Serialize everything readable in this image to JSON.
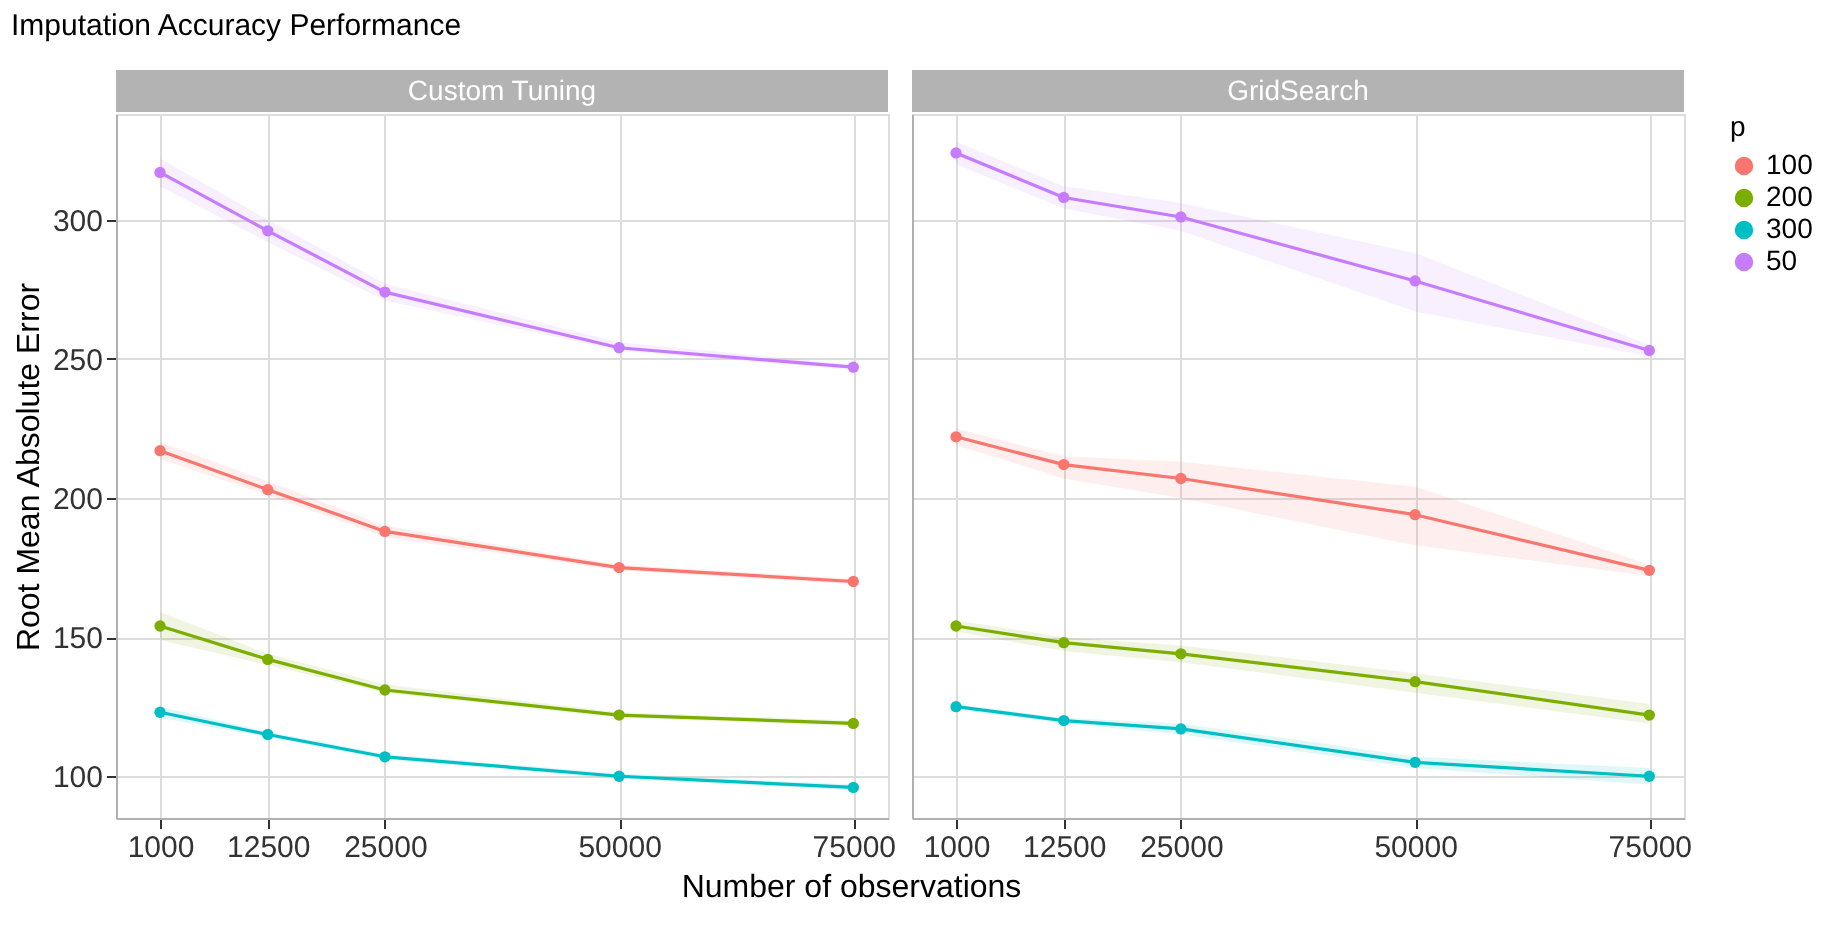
{
  "chart_data": [
    {
      "type": "line",
      "title": "Imputation Accuracy Performance",
      "subtitle": "Custom Tuning",
      "xlabel": "Number of observations",
      "ylabel": "Root Mean Absolute Error",
      "x": [
        1000,
        12500,
        25000,
        50000,
        75000
      ],
      "xlim": [
        -3700,
        78700
      ],
      "xticks": [
        1000,
        12500,
        25000,
        50000,
        75000
      ],
      "ylim": [
        85,
        338
      ],
      "yticks": [
        100,
        150,
        200,
        250,
        300
      ],
      "grid": true,
      "marker": "circle",
      "line_style": "solid",
      "legend": "right",
      "legend_title": "p",
      "series": [
        {
          "name": "100",
          "color": "#f8766d",
          "values": [
            217,
            203,
            188,
            175,
            170
          ],
          "lower": [
            214,
            201,
            186,
            174,
            169
          ],
          "upper": [
            220,
            206,
            190,
            176,
            171
          ]
        },
        {
          "name": "200",
          "color": "#7cae00",
          "values": [
            154,
            142,
            131,
            122,
            119
          ],
          "lower": [
            149,
            140,
            130,
            121,
            118
          ],
          "upper": [
            159,
            144,
            133,
            123,
            120
          ]
        },
        {
          "name": "300",
          "color": "#00bfc4",
          "values": [
            123,
            115,
            107,
            100,
            96
          ],
          "lower": [
            121,
            114,
            106,
            99,
            95
          ],
          "upper": [
            125,
            116,
            108,
            101,
            97
          ]
        },
        {
          "name": "50",
          "color": "#c77cff",
          "values": [
            317,
            296,
            274,
            254,
            247
          ],
          "lower": [
            312,
            292,
            271,
            253,
            246
          ],
          "upper": [
            322,
            300,
            277,
            256,
            248
          ]
        }
      ]
    },
    {
      "type": "line",
      "subtitle": "GridSearch",
      "x": [
        1000,
        12500,
        25000,
        50000,
        75000
      ],
      "xlim": [
        -3700,
        78700
      ],
      "xticks": [
        1000,
        12500,
        25000,
        50000,
        75000
      ],
      "ylim": [
        85,
        338
      ],
      "yticks": [
        100,
        150,
        200,
        250,
        300
      ],
      "tick_labels": "x",
      "grid": true,
      "marker": "circle",
      "line_style": "solid",
      "series": [
        {
          "name": "100",
          "color": "#f8766d",
          "values": [
            222,
            212,
            207,
            194,
            174
          ],
          "lower": [
            219,
            207,
            200,
            183,
            172
          ],
          "upper": [
            225,
            215,
            213,
            204,
            176
          ]
        },
        {
          "name": "200",
          "color": "#7cae00",
          "values": [
            154,
            148,
            144,
            134,
            122
          ],
          "lower": [
            152,
            145,
            141,
            130,
            119
          ],
          "upper": [
            156,
            150,
            147,
            137,
            126
          ]
        },
        {
          "name": "300",
          "color": "#00bfc4",
          "values": [
            125,
            120,
            117,
            105,
            100
          ],
          "lower": [
            124,
            119,
            115,
            103,
            97
          ],
          "upper": [
            126,
            121,
            119,
            107,
            103
          ]
        },
        {
          "name": "50",
          "color": "#c77cff",
          "values": [
            324,
            308,
            301,
            278,
            253
          ],
          "lower": [
            320,
            304,
            296,
            267,
            251
          ],
          "upper": [
            328,
            312,
            306,
            288,
            255
          ]
        }
      ]
    }
  ]
}
